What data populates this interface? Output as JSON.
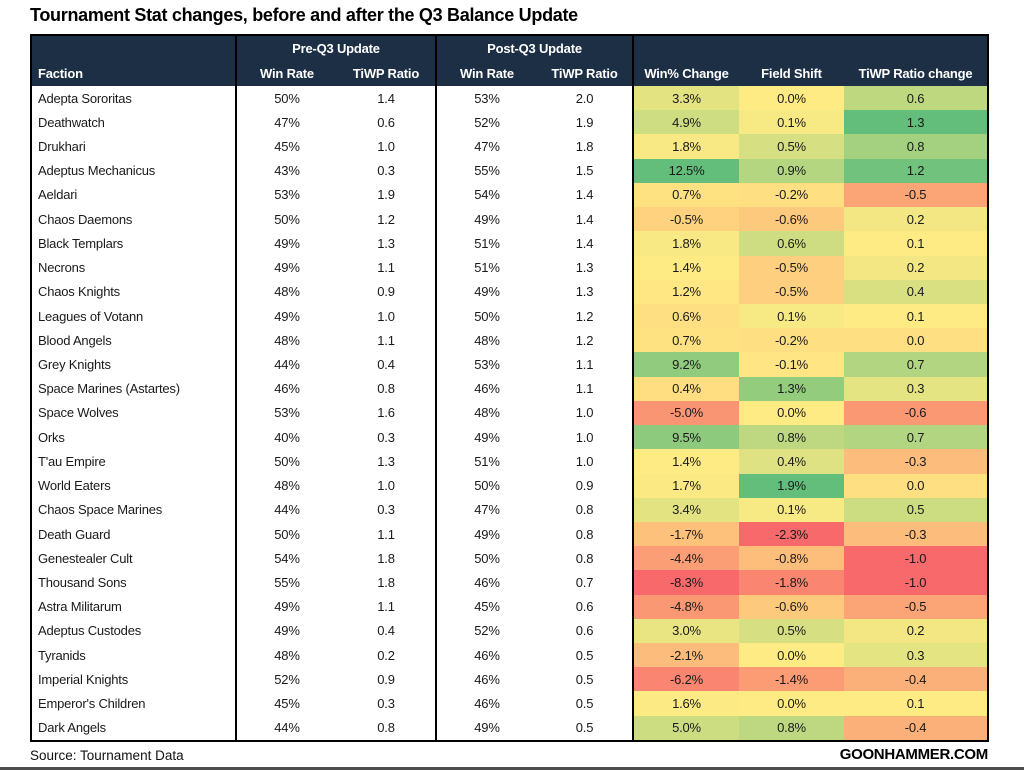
{
  "title": "Tournament Stat changes, before and after the Q3 Balance Update",
  "footer": {
    "source_note": "Source: Tournament Data",
    "brand": "GOONHAMMER.COM"
  },
  "colors": {
    "header_bg": "#1c2f45",
    "header_text": "#ffffff",
    "heat_min": "#F8696B",
    "heat_mid": "#FFEB84",
    "heat_max": "#63BE7B",
    "table_border": "#000000"
  },
  "chart_data": {
    "type": "table",
    "title": "Tournament Stat changes, before and after the Q3 Balance Update",
    "group_headers": [
      {
        "label": "",
        "span": 1
      },
      {
        "label": "Pre-Q3 Update",
        "span": 2
      },
      {
        "label": "Post-Q3 Update",
        "span": 2
      },
      {
        "label": "",
        "span": 3
      }
    ],
    "columns": [
      "Faction",
      "Win Rate",
      "TiWP Ratio",
      "Win Rate",
      "TiWP Ratio",
      "Win% Change",
      "Field Shift",
      "TiWP Ratio change"
    ],
    "heat_scale": {
      "midpoint": "50th percentile",
      "min_color": "#F8696B",
      "mid_color": "#FFEB84",
      "max_color": "#63BE7B"
    },
    "rows": [
      {
        "faction": "Adepta Sororitas",
        "pre_win_rate": 50,
        "pre_tiwp_ratio": 1.4,
        "post_win_rate": 53,
        "post_tiwp_ratio": 2.0,
        "win_pct_change": 3.3,
        "field_shift_pct": 0.0,
        "tiwp_ratio_change": 0.6
      },
      {
        "faction": "Deathwatch",
        "pre_win_rate": 47,
        "pre_tiwp_ratio": 0.6,
        "post_win_rate": 52,
        "post_tiwp_ratio": 1.9,
        "win_pct_change": 4.9,
        "field_shift_pct": 0.1,
        "tiwp_ratio_change": 1.3
      },
      {
        "faction": "Drukhari",
        "pre_win_rate": 45,
        "pre_tiwp_ratio": 1.0,
        "post_win_rate": 47,
        "post_tiwp_ratio": 1.8,
        "win_pct_change": 1.8,
        "field_shift_pct": 0.5,
        "tiwp_ratio_change": 0.8
      },
      {
        "faction": "Adeptus Mechanicus",
        "pre_win_rate": 43,
        "pre_tiwp_ratio": 0.3,
        "post_win_rate": 55,
        "post_tiwp_ratio": 1.5,
        "win_pct_change": 12.5,
        "field_shift_pct": 0.9,
        "tiwp_ratio_change": 1.2
      },
      {
        "faction": "Aeldari",
        "pre_win_rate": 53,
        "pre_tiwp_ratio": 1.9,
        "post_win_rate": 54,
        "post_tiwp_ratio": 1.4,
        "win_pct_change": 0.7,
        "field_shift_pct": -0.2,
        "tiwp_ratio_change": -0.5
      },
      {
        "faction": "Chaos Daemons",
        "pre_win_rate": 50,
        "pre_tiwp_ratio": 1.2,
        "post_win_rate": 49,
        "post_tiwp_ratio": 1.4,
        "win_pct_change": -0.5,
        "field_shift_pct": -0.6,
        "tiwp_ratio_change": 0.2
      },
      {
        "faction": "Black Templars",
        "pre_win_rate": 49,
        "pre_tiwp_ratio": 1.3,
        "post_win_rate": 51,
        "post_tiwp_ratio": 1.4,
        "win_pct_change": 1.8,
        "field_shift_pct": 0.6,
        "tiwp_ratio_change": 0.1
      },
      {
        "faction": "Necrons",
        "pre_win_rate": 49,
        "pre_tiwp_ratio": 1.1,
        "post_win_rate": 51,
        "post_tiwp_ratio": 1.3,
        "win_pct_change": 1.4,
        "field_shift_pct": -0.5,
        "tiwp_ratio_change": 0.2
      },
      {
        "faction": "Chaos Knights",
        "pre_win_rate": 48,
        "pre_tiwp_ratio": 0.9,
        "post_win_rate": 49,
        "post_tiwp_ratio": 1.3,
        "win_pct_change": 1.2,
        "field_shift_pct": -0.5,
        "tiwp_ratio_change": 0.4
      },
      {
        "faction": "Leagues of Votann",
        "pre_win_rate": 49,
        "pre_tiwp_ratio": 1.0,
        "post_win_rate": 50,
        "post_tiwp_ratio": 1.2,
        "win_pct_change": 0.6,
        "field_shift_pct": 0.1,
        "tiwp_ratio_change": 0.1
      },
      {
        "faction": "Blood Angels",
        "pre_win_rate": 48,
        "pre_tiwp_ratio": 1.1,
        "post_win_rate": 48,
        "post_tiwp_ratio": 1.2,
        "win_pct_change": 0.7,
        "field_shift_pct": -0.2,
        "tiwp_ratio_change": 0.0
      },
      {
        "faction": "Grey Knights",
        "pre_win_rate": 44,
        "pre_tiwp_ratio": 0.4,
        "post_win_rate": 53,
        "post_tiwp_ratio": 1.1,
        "win_pct_change": 9.2,
        "field_shift_pct": -0.1,
        "tiwp_ratio_change": 0.7
      },
      {
        "faction": "Space Marines (Astartes)",
        "pre_win_rate": 46,
        "pre_tiwp_ratio": 0.8,
        "post_win_rate": 46,
        "post_tiwp_ratio": 1.1,
        "win_pct_change": 0.4,
        "field_shift_pct": 1.3,
        "tiwp_ratio_change": 0.3
      },
      {
        "faction": "Space Wolves",
        "pre_win_rate": 53,
        "pre_tiwp_ratio": 1.6,
        "post_win_rate": 48,
        "post_tiwp_ratio": 1.0,
        "win_pct_change": -5.0,
        "field_shift_pct": 0.0,
        "tiwp_ratio_change": -0.6
      },
      {
        "faction": "Orks",
        "pre_win_rate": 40,
        "pre_tiwp_ratio": 0.3,
        "post_win_rate": 49,
        "post_tiwp_ratio": 1.0,
        "win_pct_change": 9.5,
        "field_shift_pct": 0.8,
        "tiwp_ratio_change": 0.7
      },
      {
        "faction": "T'au Empire",
        "pre_win_rate": 50,
        "pre_tiwp_ratio": 1.3,
        "post_win_rate": 51,
        "post_tiwp_ratio": 1.0,
        "win_pct_change": 1.4,
        "field_shift_pct": 0.4,
        "tiwp_ratio_change": -0.3
      },
      {
        "faction": "World Eaters",
        "pre_win_rate": 48,
        "pre_tiwp_ratio": 1.0,
        "post_win_rate": 50,
        "post_tiwp_ratio": 0.9,
        "win_pct_change": 1.7,
        "field_shift_pct": 1.9,
        "tiwp_ratio_change": 0.0
      },
      {
        "faction": "Chaos Space Marines",
        "pre_win_rate": 44,
        "pre_tiwp_ratio": 0.3,
        "post_win_rate": 47,
        "post_tiwp_ratio": 0.8,
        "win_pct_change": 3.4,
        "field_shift_pct": 0.1,
        "tiwp_ratio_change": 0.5
      },
      {
        "faction": "Death Guard",
        "pre_win_rate": 50,
        "pre_tiwp_ratio": 1.1,
        "post_win_rate": 49,
        "post_tiwp_ratio": 0.8,
        "win_pct_change": -1.7,
        "field_shift_pct": -2.3,
        "tiwp_ratio_change": -0.3
      },
      {
        "faction": "Genestealer Cult",
        "pre_win_rate": 54,
        "pre_tiwp_ratio": 1.8,
        "post_win_rate": 50,
        "post_tiwp_ratio": 0.8,
        "win_pct_change": -4.4,
        "field_shift_pct": -0.8,
        "tiwp_ratio_change": -1.0
      },
      {
        "faction": "Thousand Sons",
        "pre_win_rate": 55,
        "pre_tiwp_ratio": 1.8,
        "post_win_rate": 46,
        "post_tiwp_ratio": 0.7,
        "win_pct_change": -8.3,
        "field_shift_pct": -1.8,
        "tiwp_ratio_change": -1.0
      },
      {
        "faction": "Astra Militarum",
        "pre_win_rate": 49,
        "pre_tiwp_ratio": 1.1,
        "post_win_rate": 45,
        "post_tiwp_ratio": 0.6,
        "win_pct_change": -4.8,
        "field_shift_pct": -0.6,
        "tiwp_ratio_change": -0.5
      },
      {
        "faction": "Adeptus Custodes",
        "pre_win_rate": 49,
        "pre_tiwp_ratio": 0.4,
        "post_win_rate": 52,
        "post_tiwp_ratio": 0.6,
        "win_pct_change": 3.0,
        "field_shift_pct": 0.5,
        "tiwp_ratio_change": 0.2
      },
      {
        "faction": "Tyranids",
        "pre_win_rate": 48,
        "pre_tiwp_ratio": 0.2,
        "post_win_rate": 46,
        "post_tiwp_ratio": 0.5,
        "win_pct_change": -2.1,
        "field_shift_pct": 0.0,
        "tiwp_ratio_change": 0.3
      },
      {
        "faction": "Imperial Knights",
        "pre_win_rate": 52,
        "pre_tiwp_ratio": 0.9,
        "post_win_rate": 46,
        "post_tiwp_ratio": 0.5,
        "win_pct_change": -6.2,
        "field_shift_pct": -1.4,
        "tiwp_ratio_change": -0.4
      },
      {
        "faction": "Emperor's Children",
        "pre_win_rate": 45,
        "pre_tiwp_ratio": 0.3,
        "post_win_rate": 46,
        "post_tiwp_ratio": 0.5,
        "win_pct_change": 1.6,
        "field_shift_pct": 0.0,
        "tiwp_ratio_change": 0.1
      },
      {
        "faction": "Dark Angels",
        "pre_win_rate": 44,
        "pre_tiwp_ratio": 0.8,
        "post_win_rate": 49,
        "post_tiwp_ratio": 0.5,
        "win_pct_change": 5.0,
        "field_shift_pct": 0.8,
        "tiwp_ratio_change": -0.4
      }
    ]
  }
}
